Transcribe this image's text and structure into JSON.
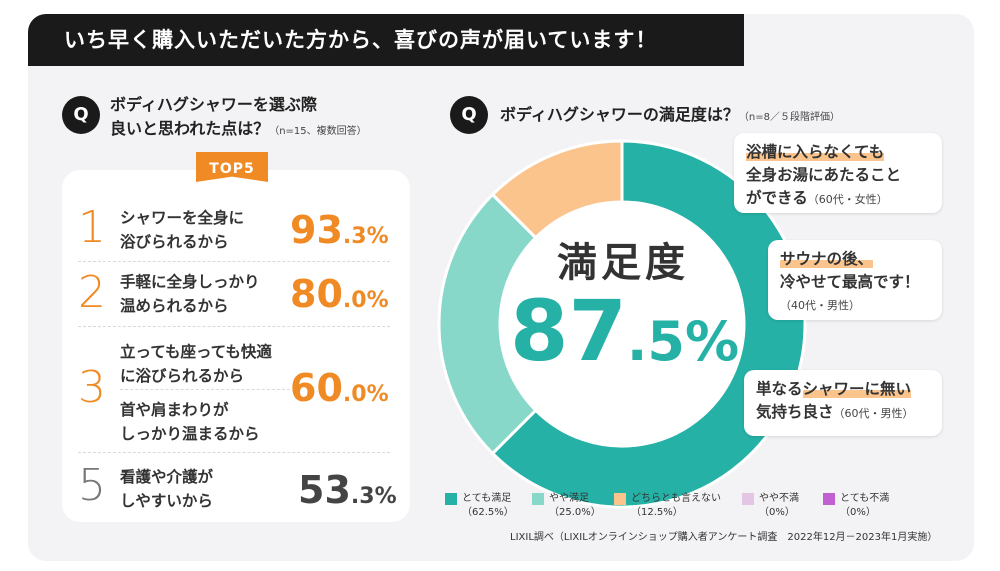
{
  "banner": {
    "title": "いち早く購入いただいた方から、喜びの声が届いています！"
  },
  "left": {
    "q_icon": "Q",
    "title_line1": "ボディハグシャワーを選ぶ際",
    "title_line2": "良いと思われた点は？",
    "note": "（n=15、複数回答）",
    "badge": "TOP5",
    "items": [
      {
        "rank": "1",
        "line1": "シャワーを全身に",
        "line2": "浴びられるから",
        "pct_int": "93",
        "pct_dec": ".3",
        "pct_unit": "%"
      },
      {
        "rank": "2",
        "line1": "手軽に全身しっかり",
        "line2": "温められるから",
        "pct_int": "80",
        "pct_dec": ".0",
        "pct_unit": "%"
      },
      {
        "rank": "3",
        "line1": "立っても座っても快適",
        "line2": "に浴びられるから",
        "pct_int": "60",
        "pct_dec": ".0",
        "pct_unit": "%"
      },
      {
        "rank": "",
        "line1": "首や肩まわりが",
        "line2": "しっかり温まるから",
        "pct_int": "",
        "pct_dec": "",
        "pct_unit": ""
      },
      {
        "rank": "5",
        "line1": "看護や介護が",
        "line2": "しやすいから",
        "pct_int": "53",
        "pct_dec": ".3",
        "pct_unit": "%"
      }
    ]
  },
  "right": {
    "q_icon": "Q",
    "title": "ボディハグシャワーの満足度は？",
    "note": "（n=8／５段階評価）",
    "center_label": "満足度",
    "center_int": "87",
    "center_dec": ".5",
    "center_unit": "%",
    "comments": [
      {
        "hl1": "浴槽に入らなくても",
        "line2": "全身お湯にあたること",
        "line3": "ができる",
        "who": "（60代・女性）"
      },
      {
        "hl1": "サウナの後、",
        "line2": "冷やせて最高です！",
        "who": "（40代・男性）"
      },
      {
        "pre": "単なる",
        "hl1": "シャワーに無い",
        "line2": "気持ち良さ",
        "who": "（60代・男性）"
      }
    ],
    "legend": [
      {
        "name": "とても満足",
        "value": "（62.5%）",
        "color": "#26b1a7"
      },
      {
        "name": "やや満足",
        "value": "（25.0%）",
        "color": "#88d8c9"
      },
      {
        "name": "どちらとも言えない",
        "value": "（12.5%）",
        "color": "#fbc48c"
      },
      {
        "name": "やや不満",
        "value": "（0%）",
        "color": "#e2c6e3"
      },
      {
        "name": "とても不満",
        "value": "（0%）",
        "color": "#c160d0"
      }
    ],
    "source": "LIXIL調べ（LIXILオンラインショップ購入者アンケート調査　2022年12月－2023年1月実施）"
  },
  "chart_data": [
    {
      "type": "bar",
      "title": "ボディハグシャワーを選ぶ際良いと思われた点は？",
      "categories": [
        "シャワーを全身に浴びられるから",
        "手軽に全身しっかり温められるから",
        "立っても座っても快適に浴びられるから",
        "首や肩まわりがしっかり温まるから",
        "看護や介護がしやすいから"
      ],
      "values": [
        93.3,
        80.0,
        60.0,
        60.0,
        53.3
      ]
    },
    {
      "type": "pie",
      "title": "ボディハグシャワーの満足度は？",
      "categories": [
        "とても満足",
        "やや満足",
        "どちらとも言えない",
        "やや不満",
        "とても不満"
      ],
      "values": [
        62.5,
        25.0,
        12.5,
        0,
        0
      ],
      "colors": [
        "#26b1a7",
        "#88d8c9",
        "#fbc48c",
        "#e2c6e3",
        "#c160d0"
      ]
    }
  ]
}
